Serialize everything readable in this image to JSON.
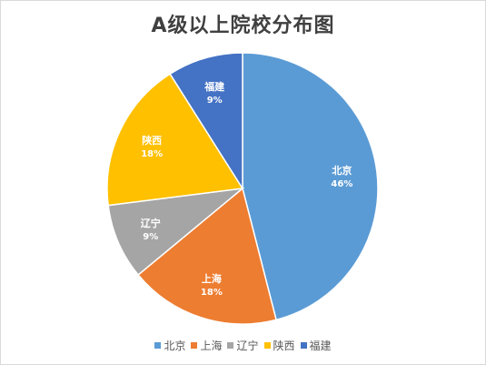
{
  "chart_data": {
    "type": "pie",
    "title": "A级以上院校分布图",
    "categories": [
      "北京",
      "上海",
      "辽宁",
      "陕西",
      "福建"
    ],
    "values": [
      46,
      18,
      9,
      18,
      9
    ],
    "labels": [
      "46%",
      "18%",
      "9%",
      "18%",
      "9%"
    ],
    "colors": [
      "#5B9BD5",
      "#ED7D31",
      "#A5A5A5",
      "#FFC000",
      "#4472C4"
    ],
    "start": "12 o'clock",
    "direction": "clockwise",
    "legend": "bottom"
  }
}
